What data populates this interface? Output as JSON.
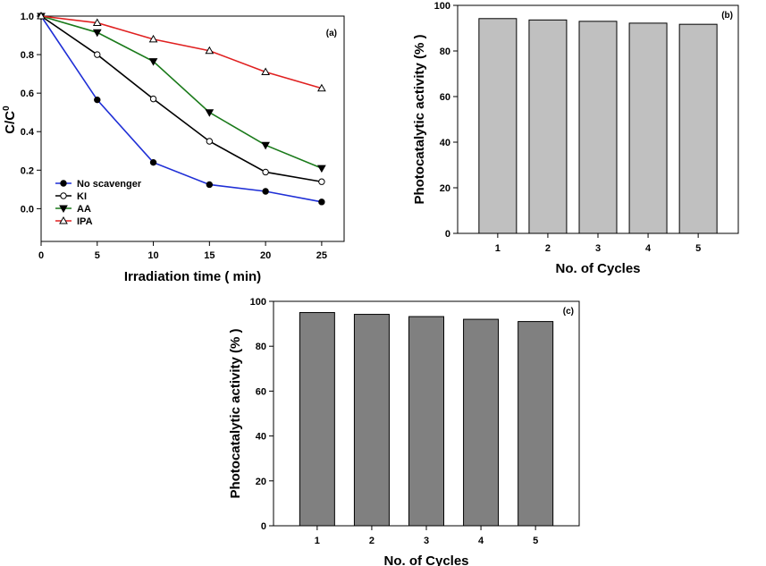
{
  "chart_data": [
    {
      "id": "a",
      "type": "line",
      "panel_label": "(a)",
      "xlabel": "Irradiation time ( min)",
      "ylabel_main": "C/C",
      "ylabel_sup": "0",
      "xlim": [
        0,
        27
      ],
      "ylim": [
        -0.17,
        1.0
      ],
      "xticks": [
        0,
        5,
        10,
        15,
        20,
        25
      ],
      "xtick_labels": [
        "0",
        "5",
        "10",
        "15",
        "20",
        "25"
      ],
      "yticks": [
        0,
        0.2,
        0.4,
        0.6,
        0.8,
        1.0
      ],
      "ytick_labels": [
        "0.0",
        "0.2",
        "0.4",
        "0.6",
        "0.8",
        "1.0"
      ],
      "x": [
        0,
        5,
        10,
        15,
        20,
        25
      ],
      "legend_position": "bottom-left",
      "series": [
        {
          "name": "No scavenger",
          "color": "#1f2fd6",
          "marker": "circle-filled",
          "values": [
            1.0,
            0.565,
            0.24,
            0.125,
            0.09,
            0.035
          ]
        },
        {
          "name": "KI",
          "color": "#000000",
          "marker": "circle-open",
          "values": [
            1.0,
            0.8,
            0.57,
            0.35,
            0.19,
            0.14
          ]
        },
        {
          "name": "AA",
          "color": "#1a7a1a",
          "marker": "triangle-down-filled",
          "values": [
            1.0,
            0.915,
            0.765,
            0.5,
            0.33,
            0.21
          ]
        },
        {
          "name": "IPA",
          "color": "#e02020",
          "marker": "triangle-up-open",
          "values": [
            1.0,
            0.965,
            0.88,
            0.82,
            0.71,
            0.625
          ]
        }
      ]
    },
    {
      "id": "b",
      "type": "bar",
      "panel_label": "(b)",
      "xlabel": "No. of Cycles",
      "ylabel": "Photocatalytic activity (% )",
      "ylim": [
        0,
        100
      ],
      "yticks": [
        0,
        20,
        40,
        60,
        80,
        100
      ],
      "ytick_labels": [
        "0",
        "20",
        "40",
        "60",
        "80",
        "100"
      ],
      "categories": [
        "1",
        "2",
        "3",
        "4",
        "5"
      ],
      "values": [
        94.2,
        93.6,
        93.0,
        92.2,
        91.7
      ],
      "bar_color": "#c0c0c0"
    },
    {
      "id": "c",
      "type": "bar",
      "panel_label": "(c)",
      "xlabel": "No. of Cycles",
      "ylabel": "Photocatalytic activity (% )",
      "ylim": [
        0,
        100
      ],
      "yticks": [
        0,
        20,
        40,
        60,
        80,
        100
      ],
      "ytick_labels": [
        "0",
        "20",
        "40",
        "60",
        "80",
        "100"
      ],
      "categories": [
        "1",
        "2",
        "3",
        "4",
        "5"
      ],
      "values": [
        95.0,
        94.2,
        93.2,
        92.0,
        91.0
      ],
      "bar_color": "#808080"
    }
  ]
}
